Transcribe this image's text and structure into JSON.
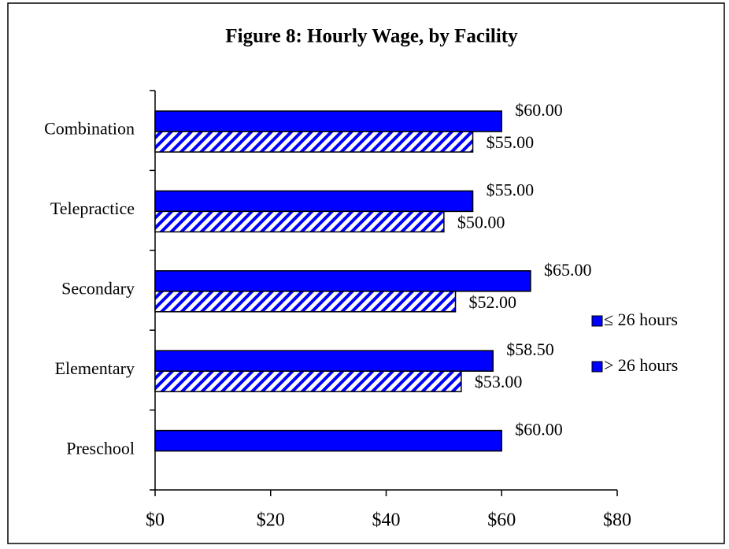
{
  "chart_data": {
    "type": "hbar",
    "title": "Figure 8: Hourly Wage, by Facility",
    "categories": [
      "Combination",
      "Telepractice",
      "Secondary",
      "Elementary",
      "Preschool"
    ],
    "series": [
      {
        "name": "≤ 26 hours",
        "color": "#0000ff",
        "values": [
          60,
          55,
          65,
          58.5,
          60
        ],
        "value_labels": [
          "$60.00",
          "$55.00",
          "$65.00",
          "$58.50",
          "$60.00"
        ]
      },
      {
        "name": "> 26 hours",
        "color": "#0000ff",
        "pattern": "hatch",
        "values": [
          55,
          50,
          52,
          53,
          null
        ],
        "value_labels": [
          "$55.00",
          "$50.00",
          "$52.00",
          "$53.00",
          null
        ]
      }
    ],
    "xlim": [
      0,
      80
    ],
    "xticks": [
      {
        "value": 0,
        "label": "$0"
      },
      {
        "value": 20,
        "label": "$20"
      },
      {
        "value": 40,
        "label": "$40"
      },
      {
        "value": 60,
        "label": "$60"
      },
      {
        "value": 80,
        "label": "$80"
      }
    ],
    "legend": "right"
  }
}
